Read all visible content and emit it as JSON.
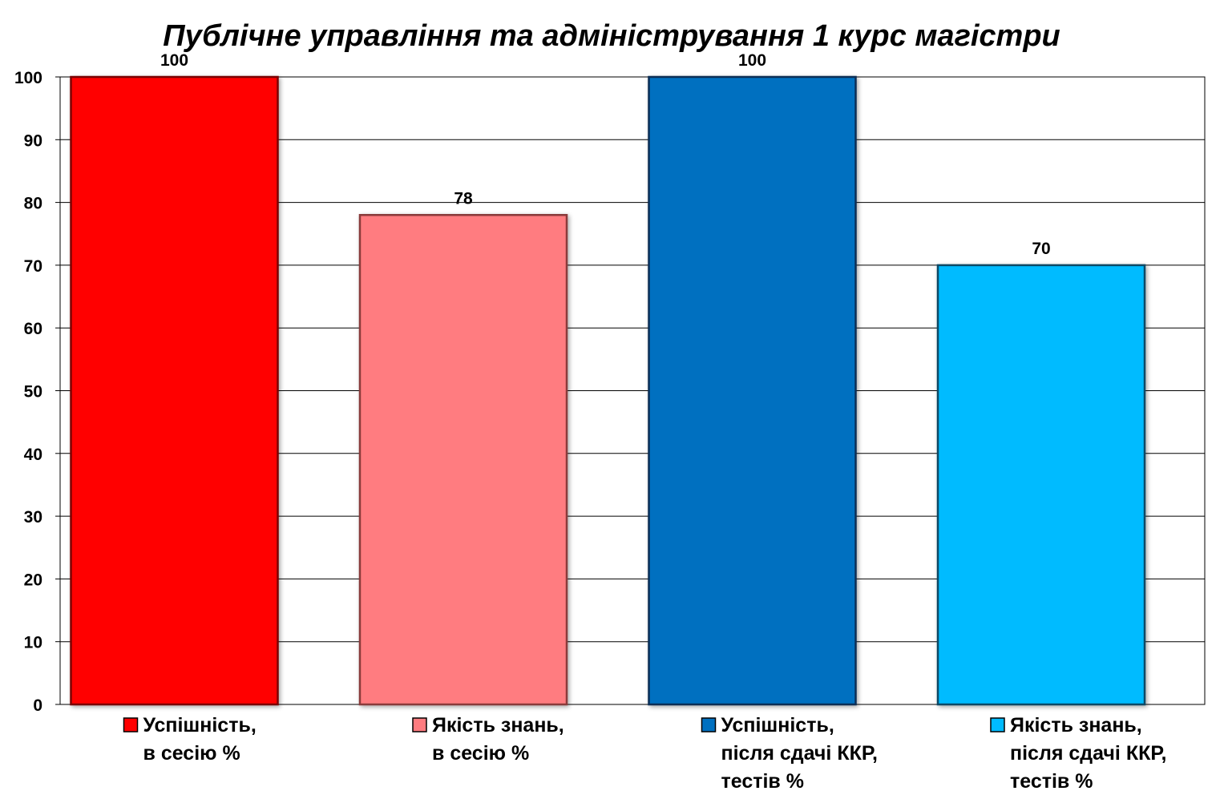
{
  "chart_data": {
    "type": "bar",
    "title": "Публічне управління та адміністрування 1 курс магістри",
    "xlabel": "",
    "ylabel": "",
    "ylim": [
      0,
      100
    ],
    "yticks": [
      0,
      10,
      20,
      30,
      40,
      50,
      60,
      70,
      80,
      90,
      100
    ],
    "grid": true,
    "legend_position": "bottom",
    "series": [
      {
        "name_lines": [
          "Успішність,",
          "в сесію %"
        ],
        "value": 100,
        "color": "#ff0000",
        "border": "#7a0000"
      },
      {
        "name_lines": [
          "Якість знань,",
          "в сесію %"
        ],
        "value": 78,
        "color": "#ff7c80",
        "border": "#8a3a3a"
      },
      {
        "name_lines": [
          "Успішність,",
          "після сдачі ККР,",
          "тестів %"
        ],
        "value": 100,
        "color": "#0070c0",
        "border": "#0b2e55"
      },
      {
        "name_lines": [
          "Якість знань,",
          "після сдачі ККР,",
          "тестів %"
        ],
        "value": 70,
        "color": "#00bbff",
        "border": "#0b4a66"
      }
    ]
  }
}
